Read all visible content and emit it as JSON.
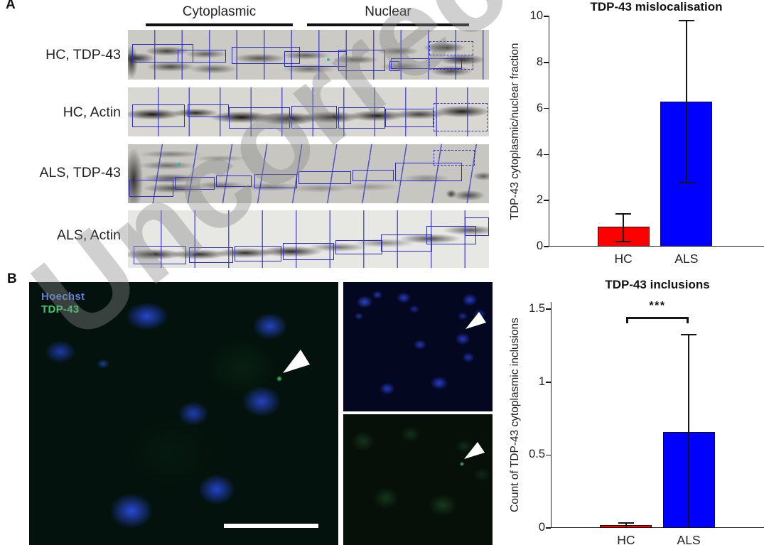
{
  "watermark": "Uncorrected",
  "panels": {
    "a_label": "A",
    "b_label": "B"
  },
  "panel_a": {
    "group_headers": [
      "Cytoplasmic",
      "Nuclear"
    ],
    "rows": [
      {
        "label": "HC, TDP-43"
      },
      {
        "label": "HC, Actin"
      },
      {
        "label": "ALS, TDP-43"
      },
      {
        "label": "ALS, Actin"
      }
    ],
    "annotation_color": "#2d2dc8"
  },
  "panel_b": {
    "legend": [
      {
        "label": "Hoechst",
        "color": "#5b7fdd"
      },
      {
        "label": "TDP-43",
        "color": "#3ecb6e"
      }
    ]
  },
  "chart_data": [
    {
      "type": "bar",
      "title": "TDP-43 mislocalisation",
      "ylabel": "TDP-43 cytoplasmic/nuclear fraction",
      "categories": [
        "HC",
        "ALS"
      ],
      "values": [
        0.85,
        6.3
      ],
      "error_low": [
        0.25,
        2.8
      ],
      "error_high": [
        1.45,
        9.85
      ],
      "bar_colors": [
        "#ff0000",
        "#0000ff"
      ],
      "ylim": [
        0,
        10
      ],
      "yticks": [
        0,
        2,
        4,
        6,
        8,
        10
      ],
      "significance": null
    },
    {
      "type": "bar",
      "title": "TDP-43 inclusions",
      "ylabel": "Count of TDP-43 cytoplasmic inclusions",
      "categories": [
        "HC",
        "ALS"
      ],
      "values": [
        0.02,
        0.66
      ],
      "error_low": [
        0,
        0
      ],
      "error_high": [
        0.04,
        1.33
      ],
      "bar_colors": [
        "#ff0000",
        "#0000ff"
      ],
      "ylim": [
        0,
        1.55
      ],
      "yticks": [
        0,
        0.5,
        1,
        1.5
      ],
      "significance": {
        "label": "***",
        "y": 1.45
      }
    }
  ]
}
